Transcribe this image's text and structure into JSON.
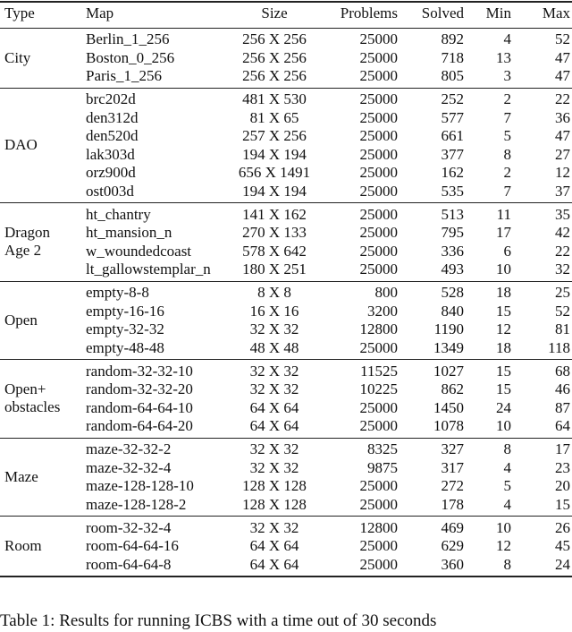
{
  "table": {
    "headers": [
      "Type",
      "Map",
      "Size",
      "Problems",
      "Solved",
      "Min",
      "Max"
    ],
    "groups": [
      {
        "type": [
          "City"
        ],
        "rows": [
          [
            "Berlin_1_256",
            "256 X 256",
            "25000",
            "892",
            "4",
            "52"
          ],
          [
            "Boston_0_256",
            "256 X 256",
            "25000",
            "718",
            "13",
            "47"
          ],
          [
            "Paris_1_256",
            "256 X 256",
            "25000",
            "805",
            "3",
            "47"
          ]
        ]
      },
      {
        "type": [
          "DAO"
        ],
        "rows": [
          [
            "brc202d",
            "481 X 530",
            "25000",
            "252",
            "2",
            "22"
          ],
          [
            "den312d",
            "81 X 65",
            "25000",
            "577",
            "7",
            "36"
          ],
          [
            "den520d",
            "257 X 256",
            "25000",
            "661",
            "5",
            "47"
          ],
          [
            "lak303d",
            "194 X 194",
            "25000",
            "377",
            "8",
            "27"
          ],
          [
            "orz900d",
            "656 X 1491",
            "25000",
            "162",
            "2",
            "12"
          ],
          [
            "ost003d",
            "194 X 194",
            "25000",
            "535",
            "7",
            "37"
          ]
        ]
      },
      {
        "type": [
          "Dragon",
          "Age 2"
        ],
        "rows": [
          [
            "ht_chantry",
            "141 X 162",
            "25000",
            "513",
            "11",
            "35"
          ],
          [
            "ht_mansion_n",
            "270 X 133",
            "25000",
            "795",
            "17",
            "42"
          ],
          [
            "w_woundedcoast",
            "578 X 642",
            "25000",
            "336",
            "6",
            "22"
          ],
          [
            "lt_gallowstemplar_n",
            "180 X 251",
            "25000",
            "493",
            "10",
            "32"
          ]
        ]
      },
      {
        "type": [
          "Open"
        ],
        "rows": [
          [
            "empty-8-8",
            "8 X 8",
            "800",
            "528",
            "18",
            "25"
          ],
          [
            "empty-16-16",
            "16 X 16",
            "3200",
            "840",
            "15",
            "52"
          ],
          [
            "empty-32-32",
            "32 X 32",
            "12800",
            "1190",
            "12",
            "81"
          ],
          [
            "empty-48-48",
            "48 X 48",
            "25000",
            "1349",
            "18",
            "118"
          ]
        ]
      },
      {
        "type": [
          "Open+",
          "obstacles"
        ],
        "rows": [
          [
            "random-32-32-10",
            "32 X 32",
            "11525",
            "1027",
            "15",
            "68"
          ],
          [
            "random-32-32-20",
            "32 X 32",
            "10225",
            "862",
            "15",
            "46"
          ],
          [
            "random-64-64-10",
            "64 X 64",
            "25000",
            "1450",
            "24",
            "87"
          ],
          [
            "random-64-64-20",
            "64 X 64",
            "25000",
            "1078",
            "10",
            "64"
          ]
        ]
      },
      {
        "type": [
          "Maze"
        ],
        "rows": [
          [
            "maze-32-32-2",
            "32 X 32",
            "8325",
            "327",
            "8",
            "17"
          ],
          [
            "maze-32-32-4",
            "32 X 32",
            "9875",
            "317",
            "4",
            "23"
          ],
          [
            "maze-128-128-10",
            "128 X 128",
            "25000",
            "272",
            "5",
            "20"
          ],
          [
            "maze-128-128-2",
            "128 X 128",
            "25000",
            "178",
            "4",
            "15"
          ]
        ]
      },
      {
        "type": [
          "Room"
        ],
        "rows": [
          [
            "room-32-32-4",
            "32 X 32",
            "12800",
            "469",
            "10",
            "26"
          ],
          [
            "room-64-64-16",
            "64 X 64",
            "25000",
            "629",
            "12",
            "45"
          ],
          [
            "room-64-64-8",
            "64 X 64",
            "25000",
            "360",
            "8",
            "24"
          ]
        ]
      }
    ]
  },
  "caption": "Table 1: Results for running ICBS with a time out of 30 seconds"
}
